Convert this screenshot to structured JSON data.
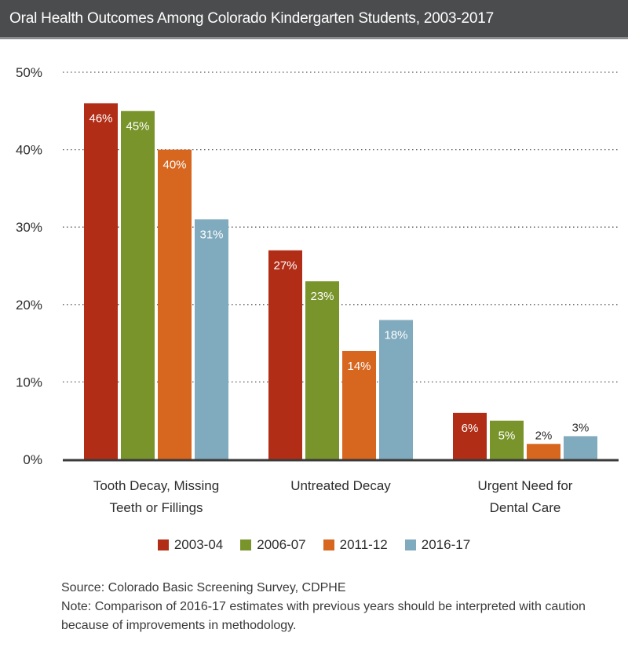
{
  "title": "Oral Health Outcomes Among Colorado Kindergarten Students, 2003-2017",
  "chart_data": {
    "type": "bar",
    "categories": [
      [
        "Tooth Decay, Missing",
        "Teeth or Fillings"
      ],
      [
        "Untreated Decay"
      ],
      [
        "Urgent Need for",
        "Dental Care"
      ]
    ],
    "series": [
      {
        "name": "2003-04",
        "color": "#b22d16",
        "values": [
          46,
          27,
          6
        ],
        "labels": [
          "46%",
          "27%",
          "6%"
        ]
      },
      {
        "name": "2006-07",
        "color": "#78942a",
        "values": [
          45,
          23,
          5
        ],
        "labels": [
          "45%",
          "23%",
          "5%"
        ]
      },
      {
        "name": "2011-12",
        "color": "#d7661f",
        "values": [
          40,
          14,
          2
        ],
        "labels": [
          "40%",
          "14%",
          "2%"
        ]
      },
      {
        "name": "2016-17",
        "color": "#80aabd",
        "values": [
          31,
          18,
          3
        ],
        "labels": [
          "31%",
          "18%",
          "3%"
        ]
      }
    ],
    "yticks": [
      "0%",
      "10%",
      "20%",
      "30%",
      "40%",
      "50%"
    ],
    "ylim": [
      0,
      50
    ],
    "grid": true,
    "legend_position": "bottom"
  },
  "footnote": {
    "source": "Source: Colorado Basic Screening Survey, CDPHE",
    "note_line1": "Note: Comparison of 2016-17 estimates with previous years should be interpreted with caution",
    "note_line2": "because of improvements in methodology."
  }
}
